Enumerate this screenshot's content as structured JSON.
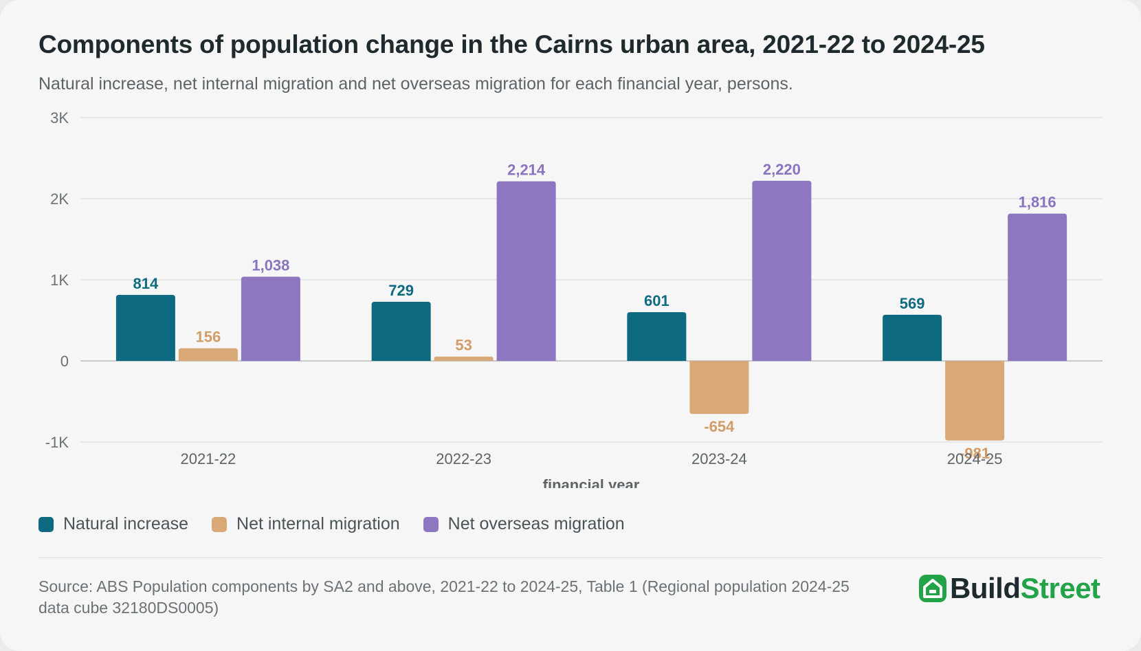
{
  "header": {
    "title": "Components of population change in the Cairns urban area, 2021-22 to 2024-25",
    "subtitle": "Natural increase, net internal migration and net overseas migration for each financial year, persons."
  },
  "chart_data": {
    "type": "bar",
    "xlabel": "financial year",
    "ylabel": "",
    "ylim": [
      -1000,
      3000
    ],
    "yticks": [
      {
        "value": 3000,
        "label": "3K"
      },
      {
        "value": 2000,
        "label": "2K"
      },
      {
        "value": 1000,
        "label": "1K"
      },
      {
        "value": 0,
        "label": "0"
      },
      {
        "value": -1000,
        "label": "-1K"
      }
    ],
    "grid": true,
    "legend_position": "bottom-left",
    "categories": [
      "2021-22",
      "2022-23",
      "2023-24",
      "2024-25"
    ],
    "series": [
      {
        "name": "Natural increase",
        "color": "#0e6a80",
        "label_color": "#0e6a80",
        "values": [
          814,
          729,
          601,
          569
        ],
        "labels": [
          "814",
          "729",
          "601",
          "569"
        ]
      },
      {
        "name": "Net internal migration",
        "color": "#d9a877",
        "label_color": "#d19c68",
        "values": [
          156,
          53,
          -654,
          -981
        ],
        "labels": [
          "156",
          "53",
          "-654",
          "-981"
        ]
      },
      {
        "name": "Net overseas migration",
        "color": "#8d77c1",
        "label_color": "#8a74bf",
        "values": [
          1038,
          2214,
          2220,
          1816
        ],
        "labels": [
          "1,038",
          "2,214",
          "2,220",
          "1,816"
        ]
      }
    ]
  },
  "footer": {
    "source": "Source: ABS Population components by SA2 and above, 2021-22 to 2024-25, Table 1 (Regional population 2024-25 data cube 32180DS0005)",
    "brand_part1": "Build",
    "brand_part2": "Street"
  }
}
